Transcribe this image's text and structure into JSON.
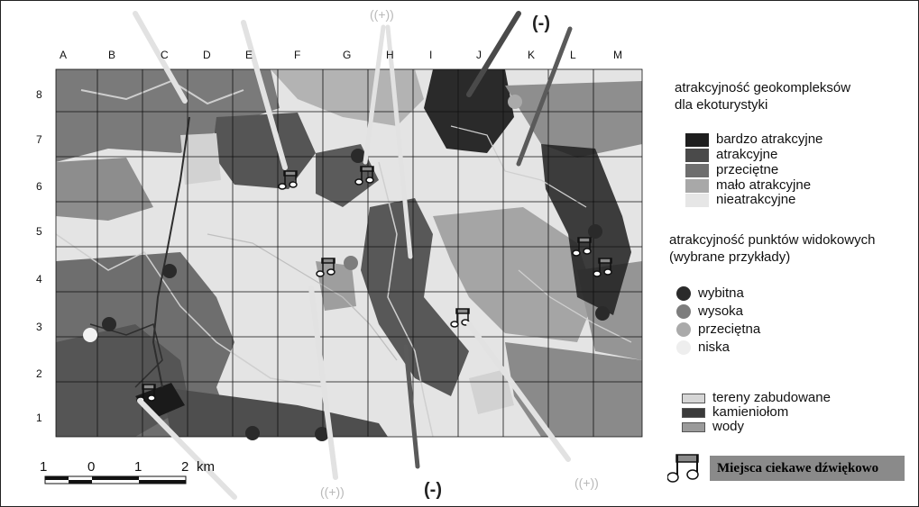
{
  "map": {
    "columns": [
      "A",
      "B",
      "C",
      "D",
      "E",
      "F",
      "G",
      "H",
      "I",
      "J",
      "K",
      "L",
      "M"
    ],
    "rows": [
      "8",
      "7",
      "6",
      "5",
      "4",
      "3",
      "2",
      "1"
    ],
    "arrow_labels": {
      "minus_top": "(-)",
      "minus_bottom": "(-)",
      "plus_top": "((+))",
      "plus_bottom_left": "((+))",
      "plus_bottom_right": "((+))"
    },
    "scale": {
      "labels": [
        "1",
        "0",
        "1",
        "2"
      ],
      "unit": "km"
    }
  },
  "legend": {
    "geo_title_line1": "atrakcyjność geokompleksów",
    "geo_title_line2": "dla ekoturystyki",
    "geo_classes": [
      {
        "label": "bardzo atrakcyjne",
        "color": "#1e1e1e"
      },
      {
        "label": "atrakcyjne",
        "color": "#4a4a4a"
      },
      {
        "label": "przeciętne",
        "color": "#6e6e6e"
      },
      {
        "label": "mało atrakcyjne",
        "color": "#a8a8a8"
      },
      {
        "label": "nieatrakcyjne",
        "color": "#e6e6e6"
      }
    ],
    "view_title_line1": "atrakcyjność punktów widokowych",
    "view_title_line2": "(wybrane przykłady)",
    "view_classes": [
      {
        "label": "wybitna",
        "color": "#2a2a2a"
      },
      {
        "label": "wysoka",
        "color": "#7d7d7d"
      },
      {
        "label": "przeciętna",
        "color": "#aaaaaa"
      },
      {
        "label": "niska",
        "color": "#eeeeee"
      }
    ],
    "other": [
      {
        "label": "tereny zabudowane",
        "color": "#d6d6d6"
      },
      {
        "label": "kamieniołom",
        "color": "#3a3a3a"
      },
      {
        "label": "wody",
        "color": "#9a9a9a"
      }
    ],
    "sound_places": "Miejsca ciekawe dźwiękowo"
  }
}
